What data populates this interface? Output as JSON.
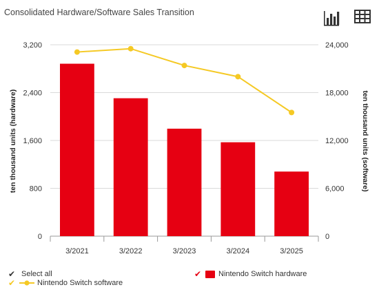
{
  "header": {
    "title": "Consolidated Hardware/Software Sales Transition",
    "chart_icon": "bar-chart-icon",
    "table_icon": "table-icon"
  },
  "legend": {
    "select_all": "Select all",
    "hardware": "Nintendo Switch hardware",
    "software": "Nintendo Switch software"
  },
  "colors": {
    "hardware": "#e60012",
    "software": "#f5c924",
    "check_dark": "#333333",
    "check_red": "#e60012",
    "check_yellow": "#f5c924"
  },
  "chart_data": {
    "type": "bar",
    "categories": [
      "3/2021",
      "3/2022",
      "3/2023",
      "3/2024",
      "3/2025"
    ],
    "series": [
      {
        "name": "Nintendo Switch hardware",
        "type": "bar",
        "axis": "left",
        "values": [
          2883,
          2306,
          1797,
          1570,
          1080
        ]
      },
      {
        "name": "Nintendo Switch software",
        "type": "line",
        "axis": "right",
        "values": [
          23088,
          23507,
          21403,
          19999,
          15507
        ]
      }
    ],
    "ylabel_left": "ten thousand units (hardware)",
    "ylabel_right": "ten thousand units (software)",
    "ylim_left": [
      0,
      3200
    ],
    "ylim_right": [
      0,
      24000
    ],
    "yticks_left": [
      "0",
      "800",
      "1,600",
      "2,400",
      "3,200"
    ],
    "yticks_right": [
      "0",
      "6,000",
      "12,000",
      "18,000",
      "24,000"
    ],
    "grid": true
  }
}
